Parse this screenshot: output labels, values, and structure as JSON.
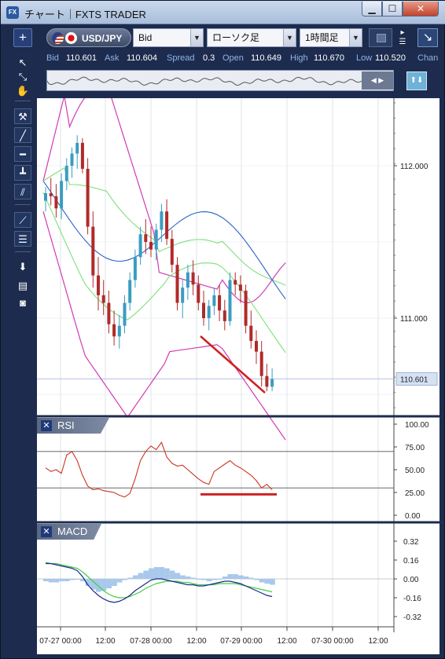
{
  "window": {
    "title": "チャート｜FXTS TRADER",
    "app_icon": "FX",
    "minimize": "▁",
    "maximize": "☐",
    "close": "✕"
  },
  "toolbar": {
    "add": "+",
    "pair": "USD/JPY",
    "side": "Bid",
    "chart_type": "ローソク足",
    "timeframe": "1時間足"
  },
  "quotes": {
    "bid_label": "Bid",
    "bid": "110.601",
    "ask_label": "Ask",
    "ask": "110.604",
    "spread_label": "Spread",
    "spread": "0.3",
    "open_label": "Open",
    "open": "110.649",
    "high_label": "High",
    "high": "110.670",
    "low_label": "Low",
    "low": "110.520",
    "change_label": "Chan"
  },
  "tools": [
    {
      "name": "pointer-icon",
      "glyph": "↖"
    },
    {
      "name": "crosshair-pointer-icon",
      "glyph": "⤡"
    },
    {
      "name": "hand-pan-icon",
      "glyph": "✋"
    },
    {
      "name": "pin-tool-icon",
      "glyph": "⚒"
    },
    {
      "name": "trendline-tool-icon",
      "glyph": "╱"
    },
    {
      "name": "horizontal-line-tool-icon",
      "glyph": "━"
    },
    {
      "name": "vertical-line-tool-icon",
      "glyph": "┻"
    },
    {
      "name": "parallel-channel-tool-icon",
      "glyph": "⫽"
    },
    {
      "name": "fan-tool-icon",
      "glyph": "⟋"
    },
    {
      "name": "fibonacci-tool-icon",
      "glyph": "☰"
    },
    {
      "name": "download-icon",
      "glyph": "⬇"
    },
    {
      "name": "list-icon",
      "glyph": "▤"
    },
    {
      "name": "camera-icon",
      "glyph": "◙"
    }
  ],
  "panels": {
    "rsi_label": "RSI",
    "macd_label": "MACD",
    "close_glyph": "✕"
  },
  "colors": {
    "bull": "#3a9cc0",
    "bear": "#b02a2a",
    "bb_outer": "#d23ab5",
    "bb_inner": "#7ee07a",
    "ma": "#2a64c8",
    "rsi": "#cc3322",
    "macd": "#1a2a8a",
    "signal": "#44cc44",
    "hist": "#a8c8ec",
    "trend": "#cc2222"
  },
  "chart_data": {
    "type": "candlestick",
    "price_axis": {
      "ticks": [
        "112.000",
        "111.000"
      ],
      "current": "110.601"
    },
    "time_axis": {
      "ticks": [
        "07-27 00:00",
        "12:00",
        "07-28 00:00",
        "12:00",
        "07-29 00:00",
        "12:00",
        "07-30 00:00",
        "12:00"
      ]
    },
    "rsi_axis": {
      "ticks": [
        "100.00",
        "75.00",
        "50.00",
        "25.00",
        "0.00"
      ],
      "levels": [
        70,
        30
      ]
    },
    "macd_axis": {
      "ticks": [
        "0.32",
        "0.16",
        "0.00",
        "-0.16",
        "-0.32"
      ]
    },
    "candles": [
      [
        0,
        111.77,
        111.86,
        111.7,
        111.82
      ],
      [
        1,
        111.82,
        111.92,
        111.74,
        111.8
      ],
      [
        2,
        111.8,
        111.88,
        111.66,
        111.72
      ],
      [
        3,
        111.72,
        111.95,
        111.65,
        111.9
      ],
      [
        4,
        111.9,
        112.05,
        111.84,
        112.0
      ],
      [
        5,
        112.0,
        112.12,
        111.92,
        112.08
      ],
      [
        6,
        112.08,
        112.2,
        111.98,
        112.15
      ],
      [
        7,
        112.15,
        112.18,
        111.95,
        111.98
      ],
      [
        8,
        111.98,
        112.05,
        111.55,
        111.6
      ],
      [
        9,
        111.6,
        111.7,
        111.2,
        111.28
      ],
      [
        10,
        111.28,
        111.4,
        111.05,
        111.15
      ],
      [
        11,
        111.15,
        111.25,
        111.02,
        111.1
      ],
      [
        12,
        111.1,
        111.18,
        110.9,
        110.96
      ],
      [
        13,
        110.96,
        111.05,
        110.82,
        110.88
      ],
      [
        14,
        110.88,
        111.02,
        110.8,
        110.95
      ],
      [
        15,
        110.95,
        111.15,
        110.9,
        111.1
      ],
      [
        16,
        111.1,
        111.3,
        111.05,
        111.25
      ],
      [
        17,
        111.25,
        111.45,
        111.2,
        111.4
      ],
      [
        18,
        111.4,
        111.6,
        111.35,
        111.55
      ],
      [
        19,
        111.55,
        111.65,
        111.42,
        111.5
      ],
      [
        20,
        111.5,
        111.6,
        111.4,
        111.45
      ],
      [
        21,
        111.45,
        111.62,
        111.38,
        111.58
      ],
      [
        22,
        111.58,
        111.75,
        111.5,
        111.7
      ],
      [
        23,
        111.7,
        111.78,
        111.48,
        111.52
      ],
      [
        24,
        111.52,
        111.58,
        111.3,
        111.35
      ],
      [
        25,
        111.35,
        111.4,
        111.05,
        111.1
      ],
      [
        26,
        111.1,
        111.25,
        111.0,
        111.2
      ],
      [
        27,
        111.2,
        111.35,
        111.12,
        111.3
      ],
      [
        28,
        111.3,
        111.38,
        111.15,
        111.22
      ],
      [
        29,
        111.22,
        111.28,
        111.05,
        111.1
      ],
      [
        30,
        111.1,
        111.18,
        110.95,
        111.0
      ],
      [
        31,
        111.0,
        111.12,
        110.92,
        111.08
      ],
      [
        32,
        111.08,
        111.2,
        111.02,
        111.15
      ],
      [
        33,
        111.15,
        111.22,
        110.98,
        111.05
      ],
      [
        34,
        111.05,
        111.12,
        110.92,
        110.98
      ],
      [
        35,
        110.98,
        111.3,
        110.95,
        111.25
      ],
      [
        36,
        111.25,
        111.3,
        111.15,
        111.22
      ],
      [
        37,
        111.22,
        111.28,
        111.1,
        111.18
      ],
      [
        38,
        111.18,
        111.22,
        110.9,
        110.95
      ],
      [
        39,
        110.95,
        111.05,
        110.8,
        110.85
      ],
      [
        40,
        110.85,
        110.92,
        110.7,
        110.78
      ],
      [
        41,
        110.78,
        110.85,
        110.55,
        110.62
      ],
      [
        42,
        110.62,
        110.7,
        110.52,
        110.55
      ],
      [
        43,
        110.55,
        110.67,
        110.52,
        110.6
      ]
    ]
  }
}
